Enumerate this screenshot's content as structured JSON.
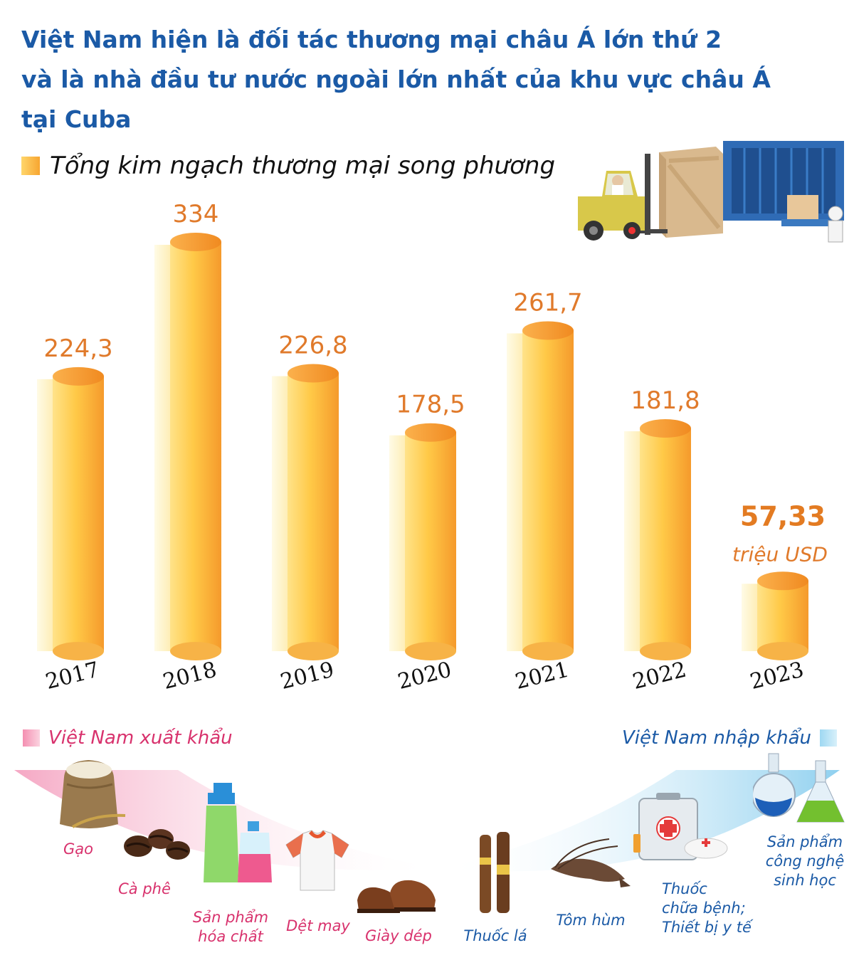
{
  "title_lines": [
    "Việt Nam hiện là đối tác thương mại châu Á lớn thứ 2",
    "và là nhà đầu tư nước ngoài lớn nhất của khu vực châu Á",
    "tại Cuba"
  ],
  "subtitle": "Tổng kim ngạch thương mại song phương",
  "chart_data": {
    "type": "bar",
    "title": "Tổng kim ngạch thương mại song phương",
    "categories": [
      "2017",
      "2018",
      "2019",
      "2020",
      "2021",
      "2022",
      "2023"
    ],
    "values": [
      224.3,
      334,
      226.8,
      178.5,
      261.7,
      181.8,
      57.33
    ],
    "value_labels": [
      "224,3",
      "334",
      "226,8",
      "178,5",
      "261,7",
      "181,8",
      "57,33"
    ],
    "unit": "triệu USD",
    "ylim": [
      0,
      334
    ],
    "grid": false,
    "colors": {
      "bar_light": "#ffe38a",
      "bar_dark": "#f59a2c",
      "label": "#e07a2b",
      "last_label": "#e37b22"
    }
  },
  "exports": {
    "label": "Việt Nam xuất khẩu",
    "items": [
      "Gạo",
      "Cà phê",
      "Sản phẩm|hóa chất",
      "Dệt may",
      "Giày dép"
    ],
    "icons": [
      "rice-sack-icon",
      "coffee-beans-icon",
      "chemical-bottles-icon",
      "shirt-icon",
      "shoes-icon"
    ]
  },
  "imports": {
    "label": "Việt Nam nhập khẩu",
    "items": [
      "Thuốc lá",
      "Tôm hùm",
      "Thuốc|chữa bệnh;|Thiết bị y tế",
      "Sản phẩm|công nghệ|sinh học"
    ],
    "icons": [
      "cigar-icon",
      "lobster-icon",
      "medical-kit-icon",
      "lab-flask-icon"
    ]
  },
  "colors": {
    "title": "#1b5aa6",
    "export": "#d8326d",
    "import": "#1b5aa6"
  }
}
